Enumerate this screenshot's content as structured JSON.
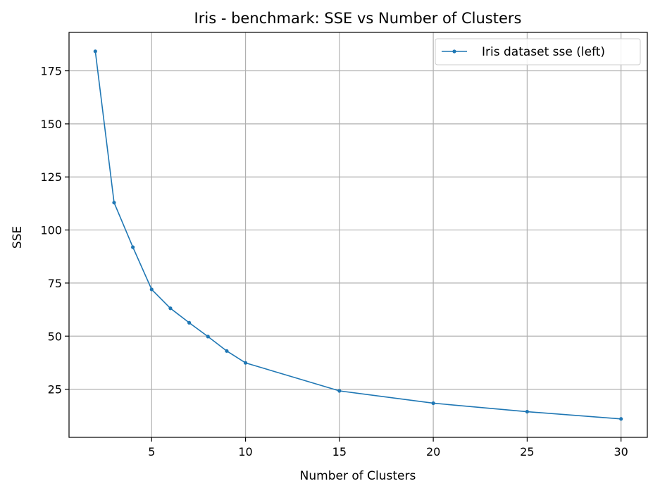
{
  "chart_data": {
    "type": "line",
    "title": "Iris - benchmark: SSE vs Number of Clusters",
    "xlabel": "Number of Clusters",
    "ylabel": "SSE",
    "xlim": [
      0.6,
      31.4
    ],
    "ylim": [
      2.3,
      193.1
    ],
    "xticks": [
      5,
      10,
      15,
      20,
      25,
      30
    ],
    "yticks": [
      25,
      50,
      75,
      100,
      125,
      150,
      175
    ],
    "grid": true,
    "legend_position": "top-right",
    "series": [
      {
        "name": "Iris dataset sse (left)",
        "color": "#1f77b4",
        "marker": "circle",
        "x": [
          2,
          3,
          4,
          5,
          6,
          7,
          8,
          9,
          10,
          15,
          20,
          25,
          30
        ],
        "y": [
          184.2,
          112.9,
          91.9,
          72.0,
          63.1,
          56.3,
          49.8,
          43.0,
          37.4,
          24.2,
          18.4,
          14.4,
          11.0
        ]
      }
    ]
  }
}
